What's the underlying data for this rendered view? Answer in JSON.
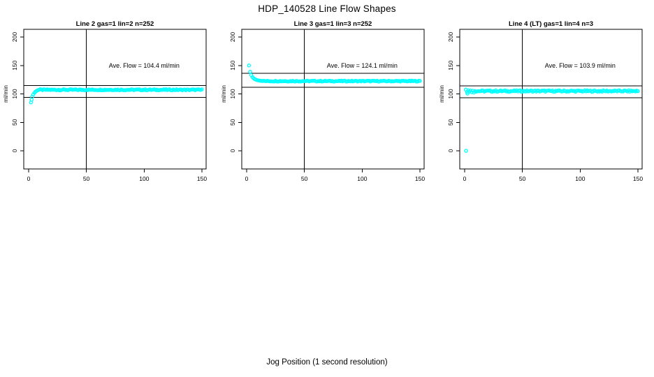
{
  "title": "HDP_140528  Line Flow Shapes",
  "xlabel": "Jog Position (1 second resolution)",
  "colors": {
    "accent": "#00FFFF",
    "axis": "#000000",
    "background": "#FFFFFF"
  },
  "chart_data": {
    "type": "scatter",
    "title": "HDP_140528  Line Flow Shapes",
    "xlabel": "Jog Position (1 second resolution)",
    "ylabel": "ml/min",
    "xlim": [
      0,
      150
    ],
    "ylim": [
      0,
      200
    ],
    "xticks": [
      0,
      50,
      100,
      150
    ],
    "yticks": [
      0,
      50,
      100,
      150,
      200
    ],
    "grid": false,
    "marker": "open-circle",
    "marker_color": "#00FFFF",
    "vline_x": 50,
    "panels": [
      {
        "title": "Line 2 gas=1 lin=2 n=252",
        "n": 252,
        "ave_flow": 104.4,
        "annotation": "Ave. Flow =  104.4  ml/min",
        "annotation_pos": [
          100,
          150
        ],
        "ref_lines": {
          "upper": 114.8,
          "lower": 94.0
        },
        "transient": [
          [
            2,
            85
          ],
          [
            2.6,
            90
          ],
          [
            3,
            95
          ],
          [
            4,
            99
          ],
          [
            5,
            102
          ],
          [
            6,
            104
          ],
          [
            7,
            105.5
          ],
          [
            8,
            106.5
          ]
        ],
        "steady": {
          "from": 9,
          "to": 150,
          "value": 107.2,
          "jitter": 0.9
        },
        "outliers": []
      },
      {
        "title": "Line 3 gas=1 lin=3 n=252",
        "n": 252,
        "ave_flow": 124.1,
        "annotation": "Ave. Flow =  124.1  ml/min",
        "annotation_pos": [
          100,
          150
        ],
        "ref_lines": {
          "upper": 136.5,
          "lower": 111.7
        },
        "transient": [
          [
            2,
            150
          ],
          [
            3,
            139
          ],
          [
            4,
            133
          ],
          [
            5,
            129.5
          ],
          [
            6,
            127.5
          ],
          [
            7,
            126
          ],
          [
            8,
            125
          ],
          [
            9,
            124.3
          ],
          [
            10,
            123.8
          ],
          [
            11,
            123.4
          ],
          [
            12,
            123.1
          ],
          [
            13,
            122.9
          ],
          [
            14,
            122.7
          ]
        ],
        "steady": {
          "from": 15,
          "to": 150,
          "value": 122.5,
          "jitter": 0.8
        },
        "outliers": []
      },
      {
        "title": "Line 4 (LT) gas=1 lin=4 n=3",
        "n": 3,
        "ave_flow": 103.9,
        "annotation": "Ave. Flow =  103.9  ml/min",
        "annotation_pos": [
          100,
          150
        ],
        "ref_lines": {
          "upper": 114.3,
          "lower": 93.5
        },
        "transient": [
          [
            1,
            107.5
          ],
          [
            2,
            103
          ],
          [
            2.5,
            100.5
          ],
          [
            3,
            106.5
          ],
          [
            4,
            104
          ],
          [
            5,
            106
          ],
          [
            6,
            103
          ],
          [
            7,
            105.5
          ],
          [
            8,
            102.5
          ],
          [
            9,
            105
          ]
        ],
        "steady": {
          "from": 10,
          "to": 150,
          "value": 105,
          "jitter": 1.3
        },
        "outliers": [
          [
            1.2,
            0
          ]
        ]
      }
    ]
  }
}
